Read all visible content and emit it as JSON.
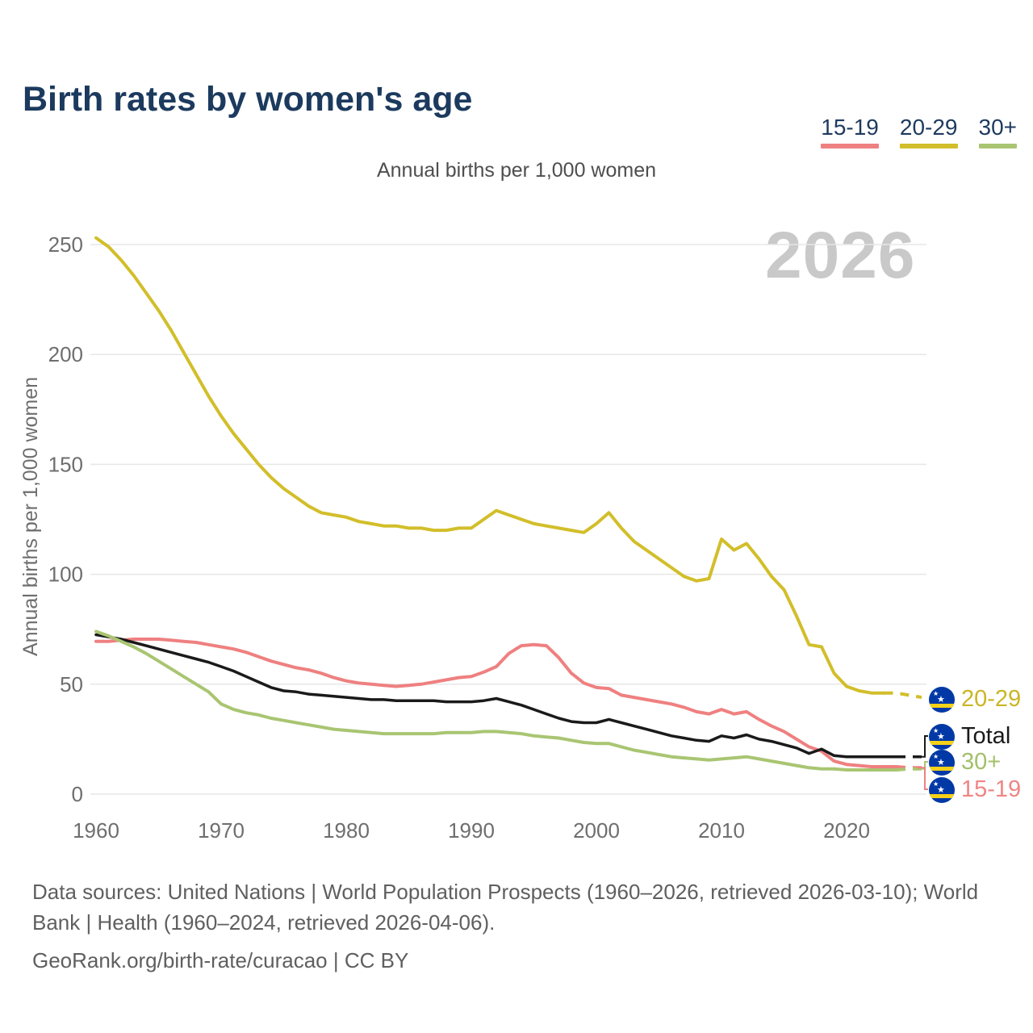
{
  "header": {
    "title": "Birth rates by women's age"
  },
  "legend": {
    "items": [
      {
        "label": "15-19",
        "color": "#ef8080"
      },
      {
        "label": "20-29",
        "color": "#d2be2a"
      },
      {
        "label": "30+",
        "color": "#a9c572"
      }
    ]
  },
  "subtitle": "Annual births per 1,000 women",
  "watermark": "2026",
  "chart_data": {
    "type": "line",
    "title": "Annual births per 1,000 women",
    "xlabel": "",
    "ylabel": "Annual births per 1,000 women",
    "x_start": 1960,
    "x_end": 2026,
    "xlim": [
      1960,
      2026
    ],
    "ylim": [
      0,
      260
    ],
    "xticks": [
      1960,
      1970,
      1980,
      1990,
      2000,
      2010,
      2020
    ],
    "yticks": [
      0,
      50,
      100,
      150,
      200,
      250
    ],
    "grid": "horizontal",
    "legend_position": "top-right",
    "series": [
      {
        "name": "20-29",
        "color": "#d2be2a",
        "dash_from": 2023,
        "values": [
          253,
          249,
          243,
          236,
          228,
          220,
          211,
          201,
          191,
          181,
          172,
          164,
          157,
          150,
          144,
          139,
          135,
          131,
          128,
          127,
          126,
          124,
          123,
          122,
          122,
          121,
          121,
          120,
          120,
          121,
          121,
          125,
          129,
          127,
          125,
          123,
          122,
          121,
          120,
          119,
          123,
          128,
          121,
          115,
          111,
          107,
          103,
          99,
          97,
          98,
          116,
          111,
          114,
          107,
          99,
          93,
          81,
          68,
          67,
          55,
          49,
          47,
          46,
          46,
          46,
          45,
          44
        ]
      },
      {
        "name": "15-19",
        "color": "#ef8080",
        "dash_from": 2024,
        "values": [
          69.5,
          69.5,
          70,
          70.5,
          70.5,
          70.5,
          70,
          69.5,
          69,
          68,
          67,
          66,
          64.5,
          62.5,
          60.5,
          59,
          57.5,
          56.5,
          55,
          53,
          51.5,
          50.5,
          50,
          49.5,
          49,
          49.5,
          50,
          51,
          52,
          53,
          53.5,
          55.5,
          58,
          64,
          67.5,
          68,
          67.5,
          62,
          55,
          50.5,
          48.5,
          48,
          45,
          44,
          43,
          42,
          41,
          39.5,
          37.5,
          36.5,
          38.5,
          36.5,
          37.5,
          34,
          31,
          28.5,
          25,
          21.5,
          19.5,
          15,
          13.5,
          13,
          12.5,
          12.5,
          12.5,
          12,
          12
        ]
      },
      {
        "name": "Total",
        "color": "#1a1a1a",
        "dash_from": 2024,
        "values": [
          72.5,
          71.5,
          70.5,
          69,
          67.5,
          66,
          64.5,
          63,
          61.5,
          60,
          58,
          56,
          53.5,
          51,
          48.5,
          47,
          46.5,
          45.5,
          45,
          44.5,
          44,
          43.5,
          43,
          43,
          42.5,
          42.5,
          42.5,
          42.5,
          42,
          42,
          42,
          42.5,
          43.5,
          42,
          40.5,
          38.5,
          36.5,
          34.5,
          33,
          32.5,
          32.5,
          34,
          32.5,
          31,
          29.5,
          28,
          26.5,
          25.5,
          24.5,
          24,
          26.5,
          25.5,
          27,
          25,
          24,
          22.5,
          21,
          18.5,
          20.5,
          17.5,
          17,
          17,
          17,
          17,
          17,
          17,
          17
        ]
      },
      {
        "name": "30+",
        "color": "#a9c572",
        "dash_from": 2024,
        "values": [
          74,
          72,
          69.5,
          67,
          64,
          60.5,
          57,
          53.5,
          50,
          46.5,
          41,
          38.5,
          37,
          36,
          34.5,
          33.5,
          32.5,
          31.5,
          30.5,
          29.5,
          29,
          28.5,
          28,
          27.5,
          27.5,
          27.5,
          27.5,
          27.5,
          28,
          28,
          28,
          28.5,
          28.5,
          28,
          27.5,
          26.5,
          26,
          25.5,
          24.5,
          23.5,
          23,
          23,
          21.5,
          20,
          19,
          18,
          17,
          16.5,
          16,
          15.5,
          16,
          16.5,
          17,
          16,
          15,
          14,
          13,
          12,
          11.5,
          11.5,
          11,
          11,
          11,
          11,
          11,
          11.5,
          11.5
        ]
      }
    ]
  },
  "end_labels": [
    {
      "series": "20-29",
      "label": "20-29",
      "color": "#c9b626",
      "connector": false
    },
    {
      "series": "Total",
      "label": "Total",
      "color": "#1a1a1a",
      "connector": true
    },
    {
      "series": "30+",
      "label": "30+",
      "color": "#a3c06a",
      "connector": true
    },
    {
      "series": "15-19",
      "label": "15-19",
      "color": "#ef8585",
      "connector": true
    }
  ],
  "flag": {
    "country": "curacao",
    "blue": "#0039a6",
    "yellow": "#f7d117",
    "star": "#ffffff"
  },
  "footer": {
    "line1": "Data sources: United Nations | World Population Prospects (1960–2026, retrieved 2026-03-10); World Bank | Health (1960–2024, retrieved 2026-04-06).",
    "line2": "GeoRank.org/birth-rate/curacao | CC BY"
  }
}
